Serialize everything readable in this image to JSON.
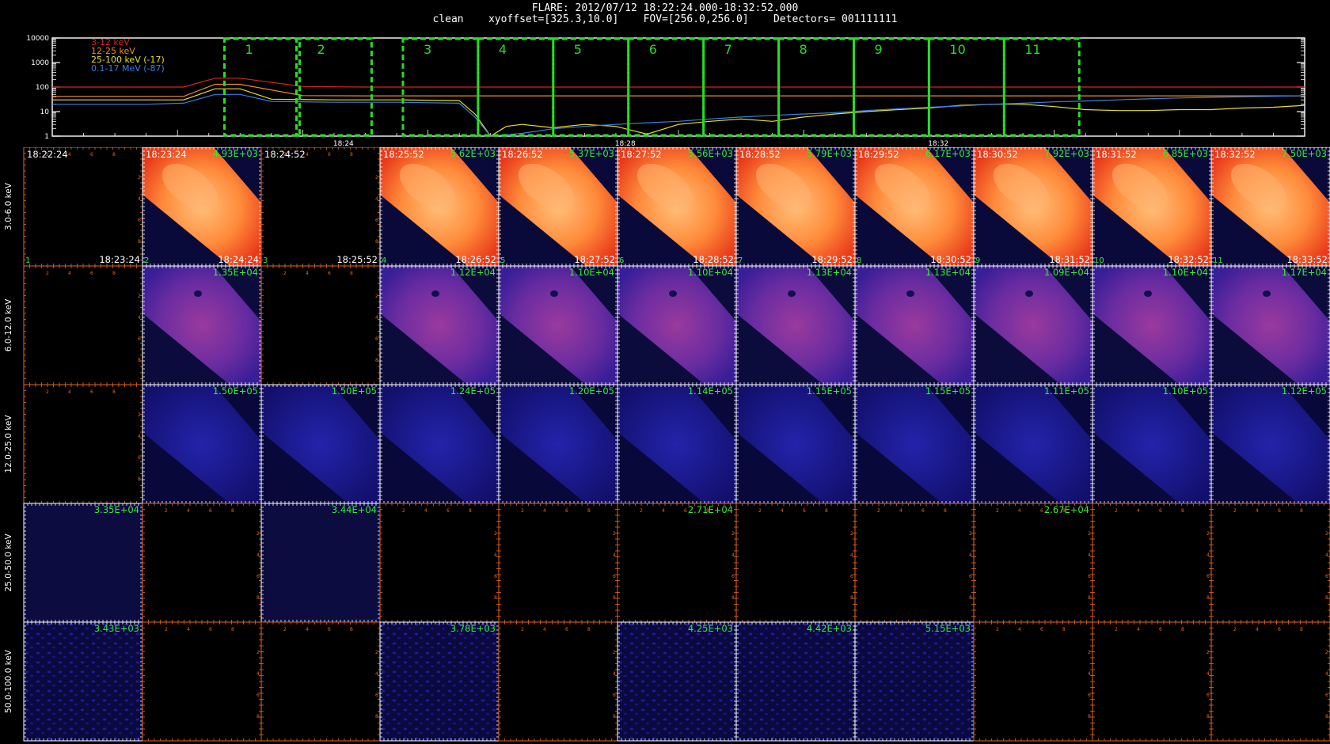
{
  "header": {
    "line1": "FLARE: 2012/07/12 18:22:24.000-18:32:52.000",
    "line2": "clean    xyoffset=[325.3,10.0]    FOV=[256.0,256.0]    Detectors= 001111111"
  },
  "chart_data": {
    "type": "line",
    "title": "",
    "yscale": "log",
    "ylim": [
      1,
      10000
    ],
    "y_ticks": [
      "1",
      "10",
      "100",
      "1000",
      "10000"
    ],
    "x_ticks": [
      "18:24",
      "18:28",
      "18:32"
    ],
    "legend": [
      {
        "name": "3-12 keV",
        "color": "#e0201c"
      },
      {
        "name": "12-25 keV",
        "color": "#f08a1e"
      },
      {
        "name": "25-100 keV (-17)",
        "color": "#e8e020"
      },
      {
        "name": "0.1-17 MeV (-87)",
        "color": "#3a7fe6"
      }
    ],
    "series": [
      {
        "name": "3-12 keV",
        "color": "#e0201c",
        "x": [
          0,
          3,
          4.2,
          5.2,
          6,
          8,
          10,
          12,
          14,
          16,
          18,
          20,
          22,
          24,
          26,
          28,
          30,
          32,
          34,
          36,
          38,
          40
        ],
        "values": [
          100,
          100,
          100,
          230,
          230,
          105,
          100,
          100,
          100,
          100,
          100,
          100,
          100,
          100,
          100,
          100,
          100,
          100,
          100,
          100,
          100,
          100
        ]
      },
      {
        "name": "12-25 keV",
        "color": "#f08a1e",
        "x": [
          0,
          3,
          4.2,
          5.2,
          6,
          8,
          10,
          12,
          14,
          16,
          18,
          20,
          22,
          24,
          26,
          28,
          30,
          32,
          34,
          36,
          38,
          40
        ],
        "values": [
          42,
          42,
          42,
          130,
          130,
          45,
          44,
          44,
          44,
          44,
          44,
          44,
          44,
          44,
          44,
          44,
          44,
          44,
          44,
          44,
          44,
          44
        ]
      },
      {
        "name": "25-100 keV (-17)",
        "color": "#e8e020",
        "x": [
          0,
          3,
          4.2,
          5.2,
          6,
          7,
          9,
          11,
          13,
          13.5,
          14,
          14.5,
          15,
          16,
          17,
          18,
          19,
          20,
          21,
          22,
          23,
          24,
          25,
          26,
          27,
          28,
          29,
          30,
          31,
          32,
          33,
          34,
          35,
          36,
          37,
          38,
          39,
          40
        ],
        "values": [
          30,
          30,
          30,
          85,
          85,
          32,
          30,
          30,
          28,
          8,
          1,
          2.5,
          3,
          2.2,
          3,
          2.5,
          1.2,
          3,
          4,
          5,
          4,
          6,
          8,
          10,
          12,
          14,
          18,
          20,
          20,
          16,
          12,
          11,
          11,
          12,
          12,
          14,
          15,
          18
        ]
      },
      {
        "name": "0.1-17 MeV (-87)",
        "color": "#3a7fe6",
        "x": [
          0,
          3,
          4.2,
          5.2,
          6,
          7,
          9,
          11,
          13,
          13.5,
          14,
          15,
          16,
          17,
          18,
          19,
          20,
          21,
          22,
          23,
          24,
          25,
          26,
          27,
          28,
          29,
          30,
          31,
          32,
          33,
          34,
          35,
          36,
          37,
          38,
          39,
          40
        ],
        "values": [
          20,
          20,
          22,
          50,
          50,
          26,
          24,
          24,
          22,
          6,
          1,
          1.3,
          2,
          2.5,
          3,
          3.5,
          4,
          5,
          6,
          7,
          8,
          9,
          11,
          13,
          15,
          17,
          20,
          22,
          25,
          27,
          30,
          33,
          36,
          38,
          40,
          42,
          45
        ]
      }
    ],
    "time_intervals": [
      "1",
      "2",
      "3",
      "4",
      "5",
      "6",
      "7",
      "8",
      "9",
      "10",
      "11"
    ]
  },
  "image_grid": {
    "row_labels": [
      "3.0-6.0 keV",
      "6.0-12.0 keV",
      "12.0-25.0 keV",
      "25.0-50.0 keV",
      "50.0-100.0 keV"
    ],
    "axis_ticks": [
      "2",
      "4",
      "6",
      "8"
    ],
    "row1_times": [
      {
        "top": "18:22:24",
        "bottom": "18:23:24",
        "index": "1"
      },
      {
        "top": "18:23:24",
        "bottom": "18:24:24",
        "index": "2"
      },
      {
        "top": "18:24:52",
        "bottom": "18:25:52",
        "index": "3"
      },
      {
        "top": "18:25:52",
        "bottom": "18:26:52",
        "index": "4"
      },
      {
        "top": "18:26:52",
        "bottom": "18:27:52",
        "index": "5"
      },
      {
        "top": "18:27:52",
        "bottom": "18:28:52",
        "index": "6"
      },
      {
        "top": "18:28:52",
        "bottom": "18:29:52",
        "index": "7"
      },
      {
        "top": "18:29:52",
        "bottom": "18:30:52",
        "index": "8"
      },
      {
        "top": "18:30:52",
        "bottom": "18:31:52",
        "index": "9"
      },
      {
        "top": "18:31:52",
        "bottom": "18:32:52",
        "index": "10"
      },
      {
        "top": "18:32:52",
        "bottom": "18:33:52",
        "index": "11"
      }
    ],
    "peaks": [
      [
        "",
        "4.93E+03",
        "",
        "5.62E+03",
        "5.37E+03",
        "5.56E+03",
        "5.79E+03",
        "6.17E+03",
        "7.92E+03",
        "6.85E+03",
        "7.50E+03"
      ],
      [
        "",
        "1.35E+04",
        "",
        "1.12E+04",
        "1.10E+04",
        "1.10E+04",
        "1.13E+04",
        "1.13E+04",
        "1.09E+04",
        "1.10E+04",
        "1.17E+04"
      ],
      [
        "",
        "1.50E+05",
        "1.50E+05",
        "1.24E+05",
        "1.20E+05",
        "1.14E+05",
        "1.15E+05",
        "1.15E+05",
        "1.11E+05",
        "1.10E+05",
        "1.12E+05"
      ],
      [
        "3.35E+04",
        "",
        "3.44E+04",
        "",
        "",
        "2.71E+04",
        "",
        "",
        "2.67E+04",
        "",
        ""
      ],
      [
        "3.43E+03",
        "",
        "",
        "3.78E+03",
        "",
        "4.25E+03",
        "4.42E+03",
        "5.15E+03",
        "",
        "",
        ""
      ]
    ],
    "cell_types": [
      [
        "empty",
        "hot",
        "empty",
        "hot",
        "hot",
        "hot",
        "hot",
        "hot",
        "hot",
        "hot",
        "hot"
      ],
      [
        "empty",
        "purple",
        "empty",
        "purple",
        "purple",
        "purple",
        "purple",
        "purple",
        "purple",
        "purple",
        "purple"
      ],
      [
        "empty",
        "blue",
        "blue",
        "blue",
        "blue",
        "blue",
        "blue",
        "blue",
        "blue",
        "blue",
        "blue"
      ],
      [
        "faint",
        "empty",
        "faint",
        "empty",
        "empty",
        "empty",
        "empty",
        "empty",
        "empty",
        "empty",
        "empty"
      ],
      [
        "noise",
        "empty",
        "empty",
        "noise",
        "empty",
        "noise",
        "noise",
        "noise",
        "empty",
        "empty",
        "empty"
      ]
    ]
  },
  "colors": {
    "background": "#000000",
    "axis_orange": "#e8641e",
    "interval_green": "#22e022",
    "peak_green": "#33ee33"
  }
}
